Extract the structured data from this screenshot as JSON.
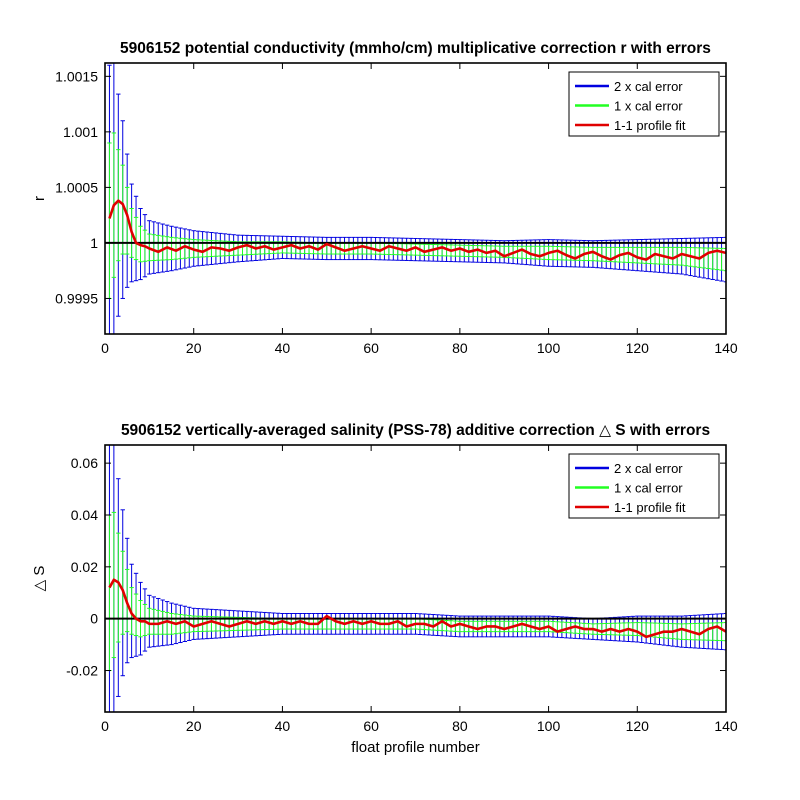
{
  "colors": {
    "cal2": "#0000e0",
    "cal1": "#22ff22",
    "fit": "#e00000",
    "reference": "#000000",
    "axis": "#000000"
  },
  "chart_data": [
    {
      "type": "line",
      "title": "5906152 potential conductivity (mmho/cm) multiplicative correction r with errors",
      "xlabel": "",
      "ylabel": "r",
      "xlim": [
        0,
        140
      ],
      "ylim": [
        0.99918,
        1.00162
      ],
      "xticks": [
        0,
        20,
        40,
        60,
        80,
        100,
        120,
        140
      ],
      "xtick_labels": [
        "0",
        "20",
        "40",
        "60",
        "80",
        "100",
        "120",
        "140"
      ],
      "yticks": [
        0.9995,
        1.0,
        1.0005,
        1.001,
        1.0015
      ],
      "ytick_labels": [
        "0.9995",
        "1",
        "1.0005",
        "1.001",
        "1.0015"
      ],
      "reference_line": 1.0,
      "legend": {
        "placement": "top-right",
        "entries": [
          "2 x cal error",
          "1 x cal error",
          "1-1 profile fit"
        ]
      },
      "series": [
        {
          "name": "1-1 profile fit",
          "x": [
            1,
            2,
            3,
            4,
            5,
            6,
            7,
            8,
            9,
            10,
            12,
            14,
            16,
            18,
            20,
            22,
            24,
            26,
            28,
            30,
            32,
            34,
            36,
            38,
            40,
            42,
            44,
            46,
            48,
            50,
            52,
            54,
            56,
            58,
            60,
            62,
            64,
            66,
            68,
            70,
            72,
            74,
            76,
            78,
            80,
            82,
            84,
            86,
            88,
            90,
            92,
            94,
            96,
            98,
            100,
            102,
            104,
            106,
            108,
            110,
            112,
            114,
            116,
            118,
            120,
            122,
            124,
            126,
            128,
            130,
            132,
            134,
            136,
            138,
            140
          ],
          "y": [
            1.00022,
            1.00034,
            1.00038,
            1.00035,
            1.00025,
            1.0001,
            1.0,
            0.99998,
            0.99997,
            0.99995,
            0.99992,
            0.99996,
            0.99993,
            0.99997,
            0.99994,
            0.99992,
            0.99996,
            0.99995,
            0.99993,
            0.99996,
            0.99998,
            0.99995,
            0.99997,
            0.99994,
            0.99996,
            0.99998,
            0.99995,
            0.99997,
            0.99994,
            0.99999,
            0.99996,
            0.99993,
            0.99995,
            0.99997,
            0.99995,
            0.99993,
            0.99997,
            0.99995,
            0.99993,
            0.99996,
            0.99992,
            0.99994,
            0.99996,
            0.99993,
            0.99995,
            0.99992,
            0.99994,
            0.99991,
            0.99993,
            0.99988,
            0.99991,
            0.99994,
            0.9999,
            0.99988,
            0.99991,
            0.99993,
            0.99989,
            0.99986,
            0.9999,
            0.99992,
            0.99988,
            0.99985,
            0.99989,
            0.99991,
            0.99987,
            0.99985,
            0.9999,
            0.99988,
            0.99986,
            0.9999,
            0.99988,
            0.99986,
            0.99991,
            0.99993,
            0.99991
          ]
        },
        {
          "name": "1 x cal error",
          "x": [
            1,
            2,
            3,
            4,
            5,
            6,
            8,
            10,
            15,
            20,
            30,
            40,
            50,
            60,
            70,
            80,
            90,
            100,
            110,
            120,
            130,
            140
          ],
          "center": [
            1.0002,
            1.00034,
            1.00034,
            1.0003,
            1.0002,
            1.00009,
            0.99999,
            0.99996,
            0.99995,
            0.99995,
            0.99995,
            0.99996,
            0.99995,
            0.99995,
            0.99994,
            0.99993,
            0.99992,
            0.99991,
            0.9999,
            0.99989,
            0.99988,
            0.99985
          ],
          "error": [
            0.0007,
            0.00065,
            0.0005,
            0.0004,
            0.0003,
            0.00022,
            0.00016,
            0.00012,
            0.0001,
            8e-05,
            6e-05,
            5e-05,
            5e-05,
            5e-05,
            5e-05,
            5e-05,
            5e-05,
            6e-05,
            6e-05,
            7e-05,
            8e-05,
            0.0001
          ]
        },
        {
          "name": "2 x cal error",
          "x": [
            1,
            2,
            3,
            4,
            5,
            6,
            8,
            10,
            15,
            20,
            30,
            40,
            50,
            60,
            70,
            80,
            90,
            100,
            110,
            120,
            130,
            140
          ],
          "center": [
            1.0002,
            1.00034,
            1.00034,
            1.0003,
            1.0002,
            1.00009,
            0.99999,
            0.99996,
            0.99995,
            0.99995,
            0.99995,
            0.99996,
            0.99995,
            0.99995,
            0.99994,
            0.99993,
            0.99992,
            0.99991,
            0.9999,
            0.99989,
            0.99988,
            0.99985
          ],
          "error": [
            0.0014,
            0.0013,
            0.001,
            0.0008,
            0.0006,
            0.00044,
            0.00032,
            0.00024,
            0.0002,
            0.00016,
            0.00012,
            0.0001,
            0.0001,
            0.0001,
            0.0001,
            0.0001,
            0.0001,
            0.00012,
            0.00012,
            0.00014,
            0.00016,
            0.0002
          ]
        }
      ]
    },
    {
      "type": "line",
      "title": "5906152 vertically-averaged salinity (PSS-78) additive correction △ S with errors",
      "xlabel": "float profile number",
      "ylabel": "△ S",
      "xlim": [
        0,
        140
      ],
      "ylim": [
        -0.036,
        0.067
      ],
      "xticks": [
        0,
        20,
        40,
        60,
        80,
        100,
        120,
        140
      ],
      "xtick_labels": [
        "0",
        "20",
        "40",
        "60",
        "80",
        "100",
        "120",
        "140"
      ],
      "yticks": [
        -0.02,
        0,
        0.02,
        0.04,
        0.06
      ],
      "ytick_labels": [
        "-0.02",
        "0",
        "0.02",
        "0.04",
        "0.06"
      ],
      "reference_line": 0,
      "legend": {
        "placement": "top-right",
        "entries": [
          "2 x cal error",
          "1 x cal error",
          "1-1 profile fit"
        ]
      },
      "series": [
        {
          "name": "1-1 profile fit",
          "x": [
            1,
            2,
            3,
            4,
            5,
            6,
            7,
            8,
            9,
            10,
            12,
            14,
            16,
            18,
            20,
            22,
            24,
            26,
            28,
            30,
            32,
            34,
            36,
            38,
            40,
            42,
            44,
            46,
            48,
            50,
            52,
            54,
            56,
            58,
            60,
            62,
            64,
            66,
            68,
            70,
            72,
            74,
            76,
            78,
            80,
            82,
            84,
            86,
            88,
            90,
            92,
            94,
            96,
            98,
            100,
            102,
            104,
            106,
            108,
            110,
            112,
            114,
            116,
            118,
            120,
            122,
            124,
            126,
            128,
            130,
            132,
            134,
            136,
            138,
            140
          ],
          "y": [
            0.012,
            0.015,
            0.014,
            0.011,
            0.006,
            0.002,
            0.0,
            -0.001,
            -0.001,
            -0.002,
            -0.002,
            -0.001,
            -0.002,
            -0.001,
            -0.003,
            -0.002,
            -0.001,
            -0.002,
            -0.003,
            -0.002,
            -0.001,
            -0.002,
            -0.001,
            -0.002,
            -0.001,
            -0.002,
            -0.001,
            -0.002,
            -0.002,
            0.001,
            -0.001,
            -0.002,
            -0.001,
            -0.002,
            -0.001,
            -0.002,
            -0.002,
            -0.001,
            -0.003,
            -0.002,
            -0.002,
            -0.003,
            -0.001,
            -0.003,
            -0.002,
            -0.003,
            -0.004,
            -0.003,
            -0.003,
            -0.004,
            -0.003,
            -0.002,
            -0.003,
            -0.004,
            -0.003,
            -0.005,
            -0.004,
            -0.003,
            -0.004,
            -0.004,
            -0.005,
            -0.004,
            -0.005,
            -0.004,
            -0.005,
            -0.007,
            -0.006,
            -0.005,
            -0.005,
            -0.004,
            -0.005,
            -0.006,
            -0.004,
            -0.003,
            -0.005
          ]
        },
        {
          "name": "1 x cal error",
          "x": [
            1,
            2,
            3,
            4,
            5,
            6,
            8,
            10,
            15,
            20,
            30,
            40,
            50,
            60,
            70,
            80,
            90,
            100,
            110,
            120,
            130,
            140
          ],
          "center": [
            0.01,
            0.013,
            0.012,
            0.01,
            0.007,
            0.003,
            0.0,
            -0.001,
            -0.002,
            -0.002,
            -0.002,
            -0.002,
            -0.002,
            -0.002,
            -0.002,
            -0.003,
            -0.003,
            -0.003,
            -0.004,
            -0.004,
            -0.005,
            -0.005
          ],
          "error": [
            0.03,
            0.028,
            0.021,
            0.016,
            0.012,
            0.009,
            0.007,
            0.005,
            0.004,
            0.003,
            0.0025,
            0.002,
            0.002,
            0.002,
            0.002,
            0.002,
            0.002,
            0.002,
            0.002,
            0.0025,
            0.003,
            0.0035
          ]
        },
        {
          "name": "2 x cal error",
          "x": [
            1,
            2,
            3,
            4,
            5,
            6,
            8,
            10,
            15,
            20,
            30,
            40,
            50,
            60,
            70,
            80,
            90,
            100,
            110,
            120,
            130,
            140
          ],
          "center": [
            0.01,
            0.013,
            0.012,
            0.01,
            0.007,
            0.003,
            0.0,
            -0.001,
            -0.002,
            -0.002,
            -0.002,
            -0.002,
            -0.002,
            -0.002,
            -0.002,
            -0.003,
            -0.003,
            -0.003,
            -0.004,
            -0.004,
            -0.005,
            -0.005
          ],
          "error": [
            0.06,
            0.056,
            0.042,
            0.032,
            0.024,
            0.018,
            0.014,
            0.01,
            0.008,
            0.006,
            0.005,
            0.004,
            0.004,
            0.004,
            0.004,
            0.004,
            0.004,
            0.004,
            0.004,
            0.005,
            0.006,
            0.007
          ]
        }
      ]
    }
  ]
}
